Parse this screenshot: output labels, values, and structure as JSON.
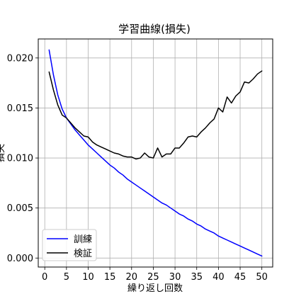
{
  "chart_data": {
    "type": "line",
    "title": "学習曲線(損失)",
    "xlabel": "繰り返し回数",
    "ylabel": "損失",
    "xlim": [
      -1.5,
      52.5
    ],
    "ylim": [
      -0.0009,
      0.0219
    ],
    "xticks": [
      0,
      5,
      10,
      15,
      20,
      25,
      30,
      35,
      40,
      45,
      50
    ],
    "yticks": [
      0.0,
      0.005,
      0.01,
      0.015,
      0.02
    ],
    "ytick_labels": [
      "0.000",
      "0.005",
      "0.010",
      "0.015",
      "0.020"
    ],
    "grid": true,
    "legend": "lower-left",
    "x": [
      1,
      2,
      3,
      4,
      5,
      6,
      7,
      8,
      9,
      10,
      11,
      12,
      13,
      14,
      15,
      16,
      17,
      18,
      19,
      20,
      21,
      22,
      23,
      24,
      25,
      26,
      27,
      28,
      29,
      30,
      31,
      32,
      33,
      34,
      35,
      36,
      37,
      38,
      39,
      40,
      41,
      42,
      43,
      44,
      45,
      46,
      47,
      48,
      49,
      50
    ],
    "series": [
      {
        "name": "訓練",
        "color": "#0000ff",
        "values": [
          0.0208,
          0.0183,
          0.0163,
          0.0149,
          0.014,
          0.0134,
          0.0128,
          0.0123,
          0.0118,
          0.0113,
          0.0109,
          0.0105,
          0.0101,
          0.0097,
          0.0093,
          0.009,
          0.0086,
          0.0083,
          0.0079,
          0.0076,
          0.0073,
          0.007,
          0.0067,
          0.0064,
          0.0061,
          0.0058,
          0.0055,
          0.0053,
          0.005,
          0.0047,
          0.0044,
          0.0042,
          0.0039,
          0.0037,
          0.0034,
          0.0032,
          0.0029,
          0.0027,
          0.0025,
          0.0022,
          0.002,
          0.0018,
          0.0016,
          0.0014,
          0.0012,
          0.001,
          0.0008,
          0.0006,
          0.0004,
          0.0002
        ]
      },
      {
        "name": "検証",
        "color": "#000000",
        "values": [
          0.0186,
          0.0168,
          0.0153,
          0.0143,
          0.014,
          0.0135,
          0.013,
          0.0126,
          0.0122,
          0.0121,
          0.0116,
          0.0113,
          0.0111,
          0.0109,
          0.0107,
          0.0105,
          0.0104,
          0.0102,
          0.0101,
          0.0101,
          0.0099,
          0.01,
          0.0105,
          0.0101,
          0.01,
          0.011,
          0.0101,
          0.0104,
          0.0104,
          0.011,
          0.011,
          0.0115,
          0.0121,
          0.0122,
          0.0121,
          0.0126,
          0.013,
          0.0135,
          0.0139,
          0.015,
          0.0146,
          0.0161,
          0.0155,
          0.0162,
          0.0166,
          0.0176,
          0.0175,
          0.0179,
          0.0184,
          0.0187
        ]
      }
    ]
  }
}
